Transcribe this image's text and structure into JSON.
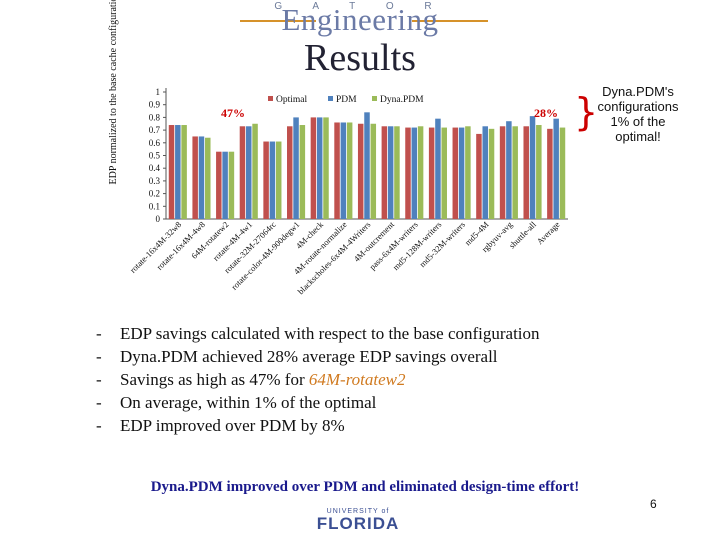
{
  "header": {
    "gator": "G A T O R",
    "engineering": "Engineering"
  },
  "title": "Results",
  "y_axis_label": "EDP normalized to the base cache configuration",
  "chart_data": {
    "type": "bar",
    "title": "",
    "ylabel": "EDP normalized to the base cache configuration",
    "ylim": [
      0,
      1
    ],
    "yticks": [
      "0",
      "0.1",
      "0.2",
      "0.3",
      "0.4",
      "0.5",
      "0.6",
      "0.7",
      "0.8",
      "0.9",
      "1"
    ],
    "categories": [
      "rotate-16x4M-32w8",
      "rotate-16x4M-4w8",
      "64M-rotatew2",
      "rotate-4M-4w1",
      "rotate-32M-27064rc",
      "rotate-color-4M-900degw1",
      "4M-check",
      "4M-rotate-normalize",
      "blackscholes-6x4M-4Writers",
      "4M-outcrement",
      "pass-6x4M-writers",
      "md5-128M-writers",
      "md5-32M-writers",
      "md5-4M",
      "rgbyuv-avg",
      "shuttle-all",
      "Average"
    ],
    "series": [
      {
        "name": "Optimal",
        "color": "#c0504d",
        "values": [
          0.74,
          0.65,
          0.53,
          0.73,
          0.61,
          0.73,
          0.8,
          0.76,
          0.75,
          0.73,
          0.72,
          0.72,
          0.72,
          0.67,
          0.73,
          0.73,
          0.71
        ]
      },
      {
        "name": "PDM",
        "color": "#4f81bd",
        "values": [
          0.74,
          0.65,
          0.53,
          0.73,
          0.61,
          0.8,
          0.8,
          0.76,
          0.84,
          0.73,
          0.72,
          0.79,
          0.72,
          0.73,
          0.77,
          0.81,
          0.79
        ]
      },
      {
        "name": "Dyna.PDM",
        "color": "#9bbb59",
        "values": [
          0.74,
          0.64,
          0.53,
          0.75,
          0.61,
          0.74,
          0.8,
          0.76,
          0.75,
          0.73,
          0.73,
          0.72,
          0.73,
          0.71,
          0.73,
          0.74,
          0.72
        ]
      }
    ],
    "annotations": [
      {
        "text": "47%",
        "color": "#cc0000",
        "near": "64M-rotatew2"
      },
      {
        "text": "28%",
        "color": "#cc0000",
        "near": "Average"
      }
    ],
    "legend": "top"
  },
  "side_note": "Dyna.PDM's configurations 1% of the optimal!",
  "bullets": [
    {
      "text": "EDP savings calculated with respect to the base configuration"
    },
    {
      "text": "Dyna.PDM achieved 28% average EDP savings overall"
    },
    {
      "pre": "Savings as high as 47% for ",
      "em": "64M-rotatew2"
    },
    {
      "text": "On average, within 1% of the optimal"
    },
    {
      "text": "EDP improved over PDM by 8%"
    }
  ],
  "bullet_marker": "-",
  "banner": "Dyna.PDM improved over PDM and eliminated design-time effort!",
  "page_number": "6",
  "footer": {
    "university_of": "UNIVERSITY of",
    "florida": "FLORIDA"
  }
}
